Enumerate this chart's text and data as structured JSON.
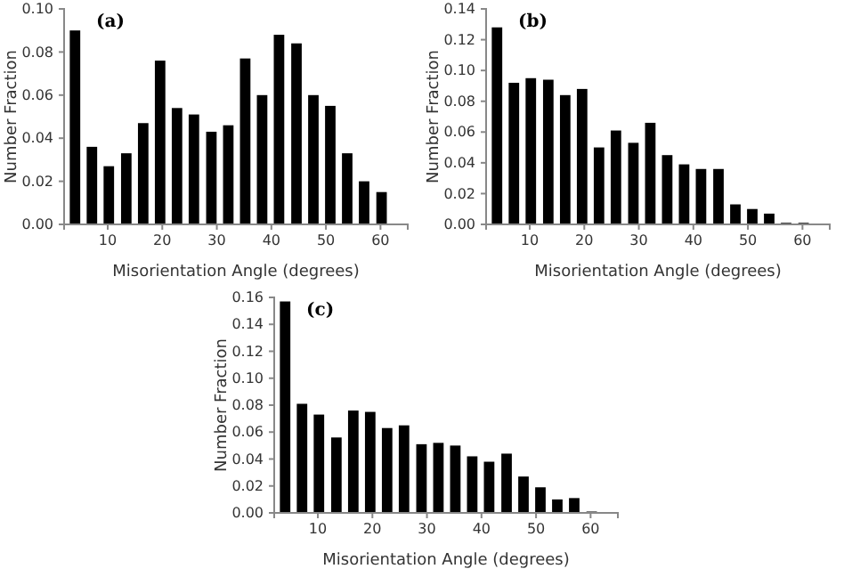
{
  "chart_data": [
    {
      "type": "bar",
      "title": "(a)",
      "xlabel": "Misorientation Angle (degrees)",
      "ylabel": "Number Fraction",
      "x": [
        4.0,
        7.1,
        10.2,
        13.4,
        16.5,
        19.6,
        22.7,
        25.8,
        29.0,
        32.1,
        35.2,
        38.3,
        41.4,
        44.6,
        47.7,
        50.8,
        53.9,
        57.0,
        60.2
      ],
      "xlim": [
        2,
        65
      ],
      "xticks": [
        10,
        20,
        30,
        40,
        50,
        60
      ],
      "series": [
        {
          "color": "#000000",
          "values": [
            0.09,
            0.036,
            0.027,
            0.033,
            0.047,
            0.076,
            0.054,
            0.051,
            0.043,
            0.046,
            0.077,
            0.06,
            0.088,
            0.084,
            0.06,
            0.055,
            0.033,
            0.02,
            0.015
          ]
        }
      ],
      "ylim": [
        0,
        0.1
      ],
      "yticks": [
        {
          "value": 0,
          "label": "0.00"
        },
        {
          "value": 0.02,
          "label": "0.02"
        },
        {
          "value": 0.04,
          "label": "0.04"
        },
        {
          "value": 0.06,
          "label": "0.06"
        },
        {
          "value": 0.08,
          "label": "0.08"
        },
        {
          "value": 0.1,
          "label": "0.10"
        }
      ]
    },
    {
      "type": "bar",
      "title": "(b)",
      "xlabel": "Misorientation Angle (degrees)",
      "ylabel": "Number Fraction",
      "x": [
        4.0,
        7.1,
        10.2,
        13.4,
        16.5,
        19.6,
        22.7,
        25.8,
        29.0,
        32.1,
        35.2,
        38.3,
        41.4,
        44.6,
        47.7,
        50.8,
        53.9,
        57.0,
        60.2
      ],
      "xlim": [
        2,
        65
      ],
      "xticks": [
        10,
        20,
        30,
        40,
        50,
        60
      ],
      "series": [
        {
          "color": "#000000",
          "values": [
            0.128,
            0.092,
            0.095,
            0.094,
            0.084,
            0.088,
            0.05,
            0.061,
            0.053,
            0.066,
            0.045,
            0.039,
            0.036,
            0.036,
            0.013,
            0.01,
            0.007,
            0.001,
            0.001
          ]
        }
      ],
      "ylim": [
        0,
        0.14
      ],
      "yticks": [
        {
          "value": 0,
          "label": "0.00"
        },
        {
          "value": 0.02,
          "label": "0.02"
        },
        {
          "value": 0.04,
          "label": "0.04"
        },
        {
          "value": 0.06,
          "label": "0.06"
        },
        {
          "value": 0.08,
          "label": "0.08"
        },
        {
          "value": 0.1,
          "label": "0.10"
        },
        {
          "value": 0.12,
          "label": "0.12"
        },
        {
          "value": 0.14,
          "label": "0.14"
        }
      ]
    },
    {
      "type": "bar",
      "title": "(c)",
      "xlabel": "Misorientation Angle (degrees)",
      "ylabel": "Number Fraction",
      "x": [
        4.0,
        7.1,
        10.2,
        13.4,
        16.5,
        19.6,
        22.7,
        25.8,
        29.0,
        32.1,
        35.2,
        38.3,
        41.4,
        44.6,
        47.7,
        50.8,
        53.9,
        57.0,
        60.2
      ],
      "xlim": [
        2,
        65
      ],
      "xticks": [
        10,
        20,
        30,
        40,
        50,
        60
      ],
      "series": [
        {
          "color": "#000000",
          "values": [
            0.157,
            0.081,
            0.073,
            0.056,
            0.076,
            0.075,
            0.063,
            0.065,
            0.051,
            0.052,
            0.05,
            0.042,
            0.038,
            0.044,
            0.027,
            0.019,
            0.01,
            0.011,
            0.001
          ]
        }
      ],
      "ylim": [
        0,
        0.16
      ],
      "yticks": [
        {
          "value": 0,
          "label": "0.00"
        },
        {
          "value": 0.02,
          "label": "0.02"
        },
        {
          "value": 0.04,
          "label": "0.04"
        },
        {
          "value": 0.06,
          "label": "0.06"
        },
        {
          "value": 0.08,
          "label": "0.08"
        },
        {
          "value": 0.1,
          "label": "0.10"
        },
        {
          "value": 0.12,
          "label": "0.12"
        },
        {
          "value": 0.14,
          "label": "0.14"
        },
        {
          "value": 0.16,
          "label": "0.16"
        }
      ]
    }
  ]
}
